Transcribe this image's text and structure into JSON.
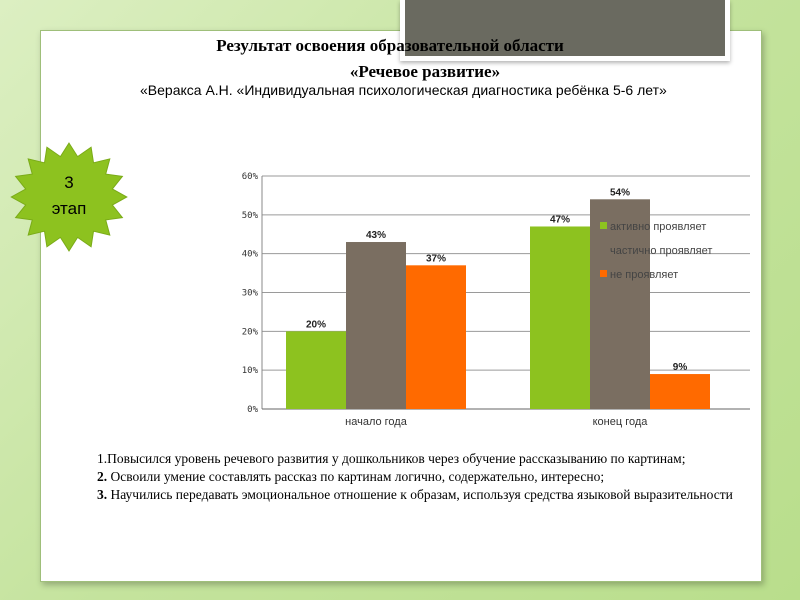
{
  "title": {
    "line1": "Результат освоения образовательной области",
    "line2": "«Речевое развитие»",
    "subtitle": "«Веракса А.Н. «Индивидуальная психологическая диагностика ребёнка 5-6 лет»"
  },
  "stage": {
    "line1": "3",
    "line2": "этап"
  },
  "colors": {
    "green": "#8dc21f",
    "taupe": "#7a6e61",
    "orange": "#ff6a00",
    "background": "#c4e39d"
  },
  "chart_data": {
    "type": "bar",
    "categories": [
      "начало года",
      "конец года"
    ],
    "series": [
      {
        "name": "активно проявляет",
        "values": [
          20,
          47
        ],
        "labels": [
          "20%",
          "47%"
        ],
        "color": "#8dc21f"
      },
      {
        "name": "частично проявляет",
        "values": [
          43,
          54
        ],
        "labels": [
          "43%",
          "54%"
        ],
        "color": "#7a6e61"
      },
      {
        "name": "не проявляет",
        "values": [
          37,
          9
        ],
        "labels": [
          "37%",
          "9%"
        ],
        "color": "#ff6a00"
      }
    ],
    "ylim": [
      0,
      60
    ],
    "yticks": [
      0,
      10,
      20,
      30,
      40,
      50,
      60
    ],
    "ytick_labels": [
      "0%",
      "10%",
      "20%",
      "30%",
      "40%",
      "50%",
      "60%"
    ],
    "grid": true,
    "legend": "right"
  },
  "notes": {
    "item1": "1.Повысился уровень речевого развития у дошкольников через обучение рассказыванию по картинам;",
    "item2_num": "2.",
    "item2": " Освоили умение составлять рассказ по картинам логично, содержательно, интересно;",
    "item3_num": "3.",
    "item3": " Научились передавать эмоциональное отношение к образам, используя средства языковой выразительности"
  }
}
